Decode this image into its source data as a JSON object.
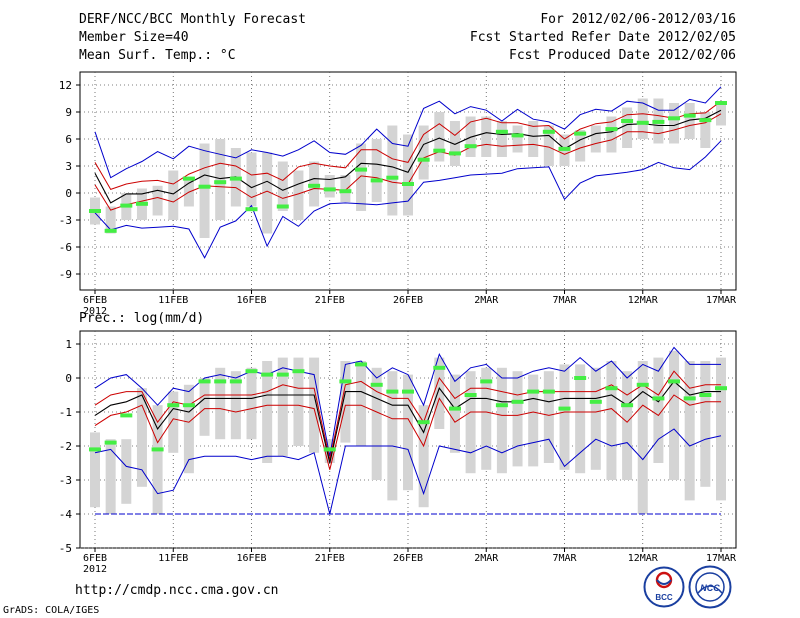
{
  "header": {
    "title": "DERF/NCC/BCC Monthly Forecast",
    "member_size": "Member Size=40",
    "variable": "Mean Surf. Temp.: °C",
    "period": "For 2012/02/06-2012/03/16",
    "started": "Fcst Started Refer Date 2012/02/05",
    "produced": "Fcst Produced Date 2012/02/06"
  },
  "footer": {
    "url": "http://cmdp.ncc.cma.gov.cn",
    "credit": "GrADS: COLA/IGES",
    "logo_left_text": "BCC",
    "logo_right_text": "NCC"
  },
  "colors": {
    "box": "#d4d4d4",
    "obs": "#44ee44",
    "mean": "#000000",
    "spread": "#cc0000",
    "extreme": "#0000cc",
    "floor": "#0000cc"
  },
  "chart_data": [
    {
      "id": "temperature",
      "type": "box-ensemble",
      "title": "Mean Surf. Temp.: °C",
      "ylim": [
        -10.5,
        13.5
      ],
      "yticks": [
        12,
        9,
        6,
        3,
        0,
        -3,
        -6,
        -9
      ],
      "ytick_labels": [
        "12",
        "9",
        "6",
        "3",
        "0",
        "-3",
        "-6",
        "-9"
      ],
      "x_labels": [
        "6FEB",
        "11FEB",
        "16FEB",
        "21FEB",
        "26FEB",
        "2MAR",
        "7MAR",
        "12MAR",
        "17MAR"
      ],
      "x_label_days": [
        0,
        5,
        10,
        15,
        20,
        25,
        30,
        35,
        40
      ],
      "year_label": "2012",
      "series": {
        "max": [
          6.8,
          1.7,
          2.7,
          3.5,
          4.6,
          3.8,
          5.2,
          4.7,
          4.3,
          3.9,
          4.8,
          4.5,
          4.1,
          4.8,
          5.8,
          4.5,
          4.3,
          5.3,
          7.1,
          5.5,
          5.2,
          9.4,
          10.2,
          8.8,
          9.6,
          9.2,
          8.0,
          9.3,
          8.2,
          7.9,
          7.1,
          8.7,
          9.3,
          9.1,
          10.2,
          10.0,
          9.2,
          9.2,
          10.4,
          10.0,
          11.8
        ],
        "p75": [
          3.4,
          0.4,
          1.0,
          1.3,
          1.4,
          1.0,
          2.1,
          2.8,
          3.3,
          3.0,
          2.0,
          2.2,
          1.4,
          2.9,
          3.3,
          3.0,
          2.8,
          4.8,
          4.8,
          3.8,
          3.4,
          6.5,
          7.7,
          6.4,
          7.9,
          8.3,
          7.8,
          7.8,
          7.4,
          7.5,
          6.0,
          7.1,
          7.7,
          7.9,
          8.7,
          8.8,
          8.6,
          8.3,
          8.8,
          8.9,
          10.2
        ],
        "mean": [
          2.2,
          -1.1,
          -0.1,
          -0.1,
          0.3,
          -0.1,
          1.1,
          2.0,
          1.6,
          1.8,
          0.6,
          1.3,
          0.3,
          1.0,
          1.6,
          1.5,
          1.8,
          3.3,
          3.2,
          2.9,
          2.3,
          5.4,
          6.1,
          5.4,
          6.2,
          6.7,
          6.5,
          6.6,
          6.3,
          6.4,
          4.9,
          5.9,
          6.6,
          6.8,
          7.6,
          7.7,
          7.5,
          7.5,
          8.1,
          8.3,
          9.2
        ],
        "p25": [
          0.9,
          -1.9,
          -1.3,
          -0.9,
          -0.5,
          -1.0,
          0.1,
          0.8,
          0.7,
          0.6,
          -0.5,
          0.2,
          -0.6,
          -0.1,
          0.5,
          0.4,
          0.3,
          1.9,
          1.7,
          1.2,
          1.0,
          3.9,
          4.6,
          4.2,
          5.1,
          5.4,
          5.2,
          5.3,
          5.4,
          5.1,
          4.3,
          5.0,
          5.5,
          5.9,
          6.8,
          6.8,
          6.6,
          7.0,
          7.5,
          7.8,
          8.8
        ],
        "min": [
          -2.2,
          -4.1,
          -3.6,
          -3.9,
          -3.8,
          -3.7,
          -4.0,
          -7.2,
          -3.8,
          -3.1,
          -1.4,
          -5.9,
          -2.6,
          -3.7,
          -2.0,
          -1.2,
          -1.1,
          -1.2,
          -1.3,
          -1.1,
          -0.9,
          1.2,
          1.4,
          1.7,
          2.0,
          2.1,
          2.2,
          2.7,
          2.8,
          2.9,
          -0.7,
          1.1,
          1.9,
          2.1,
          2.3,
          2.6,
          3.4,
          2.8,
          2.6,
          4.0,
          5.8
        ],
        "box_top": [
          -0.5,
          -1.5,
          0.0,
          0.5,
          0.8,
          2.5,
          1.5,
          5.5,
          6.0,
          5.0,
          4.5,
          4.5,
          3.5,
          2.5,
          3.5,
          2.0,
          2.0,
          5.5,
          6.0,
          7.5,
          6.5,
          7.5,
          9.0,
          8.0,
          8.5,
          8.5,
          8.0,
          7.5,
          8.0,
          7.5,
          6.5,
          7.0,
          7.5,
          8.5,
          9.5,
          10.5,
          10.5,
          10.0,
          10.0,
          9.0,
          10.0
        ],
        "box_bottom": [
          -3.5,
          -4.5,
          -3.0,
          -3.0,
          -2.5,
          -3.0,
          -1.5,
          -5.0,
          -3.0,
          -1.5,
          -1.5,
          -4.5,
          -2.0,
          -3.0,
          -1.5,
          -0.5,
          -1.0,
          -2.0,
          -1.0,
          -2.5,
          -2.5,
          1.5,
          3.5,
          3.0,
          4.0,
          4.0,
          4.0,
          4.5,
          4.0,
          3.0,
          3.0,
          3.5,
          4.5,
          4.5,
          5.0,
          6.0,
          5.5,
          5.5,
          6.0,
          5.0,
          7.5
        ],
        "obs": [
          -2.0,
          -4.2,
          -1.4,
          -1.2,
          null,
          null,
          1.6,
          0.7,
          1.2,
          1.6,
          -1.8,
          null,
          -1.5,
          null,
          0.8,
          0.4,
          0.2,
          2.6,
          1.4,
          1.7,
          1.0,
          3.7,
          4.7,
          4.4,
          5.2,
          null,
          6.8,
          6.4,
          null,
          6.8,
          4.9,
          6.6,
          null,
          7.1,
          8.0,
          7.8,
          7.9,
          8.3,
          8.6,
          8.1,
          10.0
        ]
      }
    },
    {
      "id": "precipitation",
      "type": "box-ensemble",
      "title": "Prec.: log(mm/d)",
      "ylim": [
        -5,
        1.3
      ],
      "yticks": [
        1,
        0,
        -1,
        -2,
        -3,
        -4,
        -5
      ],
      "ytick_labels": [
        "1",
        "0",
        "-1",
        "-2",
        "-3",
        "-4",
        "-5"
      ],
      "x_labels": [
        "6FEB",
        "11FEB",
        "16FEB",
        "21FEB",
        "26FEB",
        "2MAR",
        "7MAR",
        "12MAR",
        "17MAR"
      ],
      "x_label_days": [
        0,
        5,
        10,
        15,
        20,
        25,
        30,
        35,
        40
      ],
      "year_label": "2012",
      "floor": -4,
      "series": {
        "max": [
          -0.3,
          0.0,
          0.1,
          -0.3,
          -0.8,
          -0.3,
          -0.4,
          0.0,
          0.1,
          0.0,
          0.2,
          0.1,
          0.3,
          0.2,
          0.1,
          -2.3,
          0.4,
          0.5,
          0.0,
          0.3,
          0.1,
          -0.8,
          0.7,
          -0.1,
          0.3,
          0.4,
          0.0,
          0.0,
          0.2,
          0.3,
          0.2,
          0.6,
          0.2,
          0.5,
          0.0,
          0.4,
          0.2,
          0.9,
          0.4,
          0.4,
          0.4
        ],
        "p75": [
          -0.8,
          -0.5,
          -0.4,
          -0.4,
          -1.3,
          -0.7,
          -0.8,
          -0.5,
          -0.5,
          -0.5,
          -0.5,
          -0.4,
          -0.2,
          -0.3,
          -0.3,
          -2.4,
          -0.2,
          -0.1,
          -0.4,
          -0.6,
          -0.6,
          -1.3,
          0.0,
          -0.6,
          -0.3,
          -0.3,
          -0.4,
          -0.5,
          -0.4,
          -0.4,
          -0.4,
          -0.4,
          -0.4,
          -0.2,
          -0.5,
          -0.2,
          -0.5,
          0.2,
          -0.3,
          -0.2,
          -0.2
        ],
        "mean": [
          -1.1,
          -0.8,
          -0.7,
          -0.5,
          -1.5,
          -0.9,
          -1.0,
          -0.6,
          -0.6,
          -0.6,
          -0.6,
          -0.5,
          -0.5,
          -0.5,
          -0.5,
          -2.5,
          -0.4,
          -0.4,
          -0.6,
          -0.8,
          -0.8,
          -1.6,
          -0.3,
          -0.9,
          -0.6,
          -0.6,
          -0.7,
          -0.7,
          -0.6,
          -0.7,
          -0.6,
          -0.6,
          -0.6,
          -0.5,
          -0.8,
          -0.4,
          -0.7,
          -0.1,
          -0.5,
          -0.4,
          -0.4
        ],
        "p25": [
          -1.4,
          -1.1,
          -1.0,
          -0.8,
          -1.9,
          -1.2,
          -1.3,
          -0.9,
          -0.9,
          -1.0,
          -0.9,
          -0.8,
          -0.8,
          -0.8,
          -0.9,
          -2.7,
          -0.8,
          -0.8,
          -1.0,
          -1.2,
          -1.2,
          -2.0,
          -0.6,
          -1.3,
          -1.0,
          -1.0,
          -1.1,
          -1.1,
          -1.0,
          -1.1,
          -1.0,
          -1.0,
          -1.0,
          -0.9,
          -1.3,
          -0.8,
          -1.1,
          -0.5,
          -0.8,
          -0.7,
          -0.7
        ],
        "min": [
          -2.2,
          -2.1,
          -2.6,
          -2.7,
          -3.4,
          -3.3,
          -2.4,
          -2.3,
          -2.3,
          -2.3,
          -2.4,
          -2.3,
          -2.3,
          -2.4,
          -2.2,
          -4.0,
          -2.0,
          -2.0,
          -2.0,
          -2.0,
          -2.1,
          -3.4,
          -2.0,
          -2.1,
          -2.2,
          -2.0,
          -2.2,
          -2.0,
          -1.9,
          -1.8,
          -2.6,
          -2.2,
          -1.8,
          -2.0,
          -1.9,
          -2.4,
          -1.8,
          -1.5,
          -2.0,
          -1.8,
          -1.7
        ],
        "box_top": [
          -1.6,
          -1.8,
          -1.8,
          -0.3,
          -0.8,
          -0.4,
          -0.2,
          0.0,
          0.3,
          0.2,
          0.3,
          0.5,
          0.6,
          0.6,
          0.6,
          -1.8,
          0.5,
          0.5,
          0.3,
          0.2,
          0.1,
          -0.8,
          0.6,
          0.1,
          0.2,
          0.3,
          0.3,
          0.2,
          0.1,
          0.2,
          0.4,
          0.4,
          0.3,
          0.5,
          0.2,
          0.5,
          0.6,
          0.8,
          0.5,
          0.5,
          0.6
        ],
        "box_bottom": [
          -3.8,
          -4.0,
          -3.7,
          -3.2,
          -4.0,
          -2.2,
          -2.8,
          -1.7,
          -1.8,
          -1.8,
          -1.8,
          -2.5,
          -2.3,
          -2.0,
          -2.2,
          -2.5,
          -1.9,
          -2.0,
          -3.0,
          -3.6,
          -3.3,
          -3.8,
          -1.5,
          -2.2,
          -2.8,
          -2.7,
          -2.8,
          -2.6,
          -2.6,
          -2.5,
          -2.7,
          -2.8,
          -2.7,
          -3.0,
          -3.0,
          -4.0,
          -2.5,
          -3.0,
          -3.6,
          -3.2,
          -3.6
        ],
        "obs": [
          -2.1,
          -1.9,
          -1.1,
          null,
          -2.1,
          -0.8,
          -0.8,
          -0.1,
          -0.1,
          -0.1,
          0.2,
          0.1,
          0.1,
          0.2,
          null,
          -2.1,
          -0.1,
          0.4,
          -0.2,
          -0.4,
          -0.4,
          -1.3,
          0.3,
          -0.9,
          -0.5,
          -0.1,
          -0.8,
          -0.7,
          -0.4,
          -0.4,
          -0.9,
          0.0,
          -0.7,
          -0.3,
          -0.8,
          -0.2,
          -0.6,
          -0.1,
          -0.6,
          -0.5,
          -0.3
        ]
      }
    }
  ]
}
